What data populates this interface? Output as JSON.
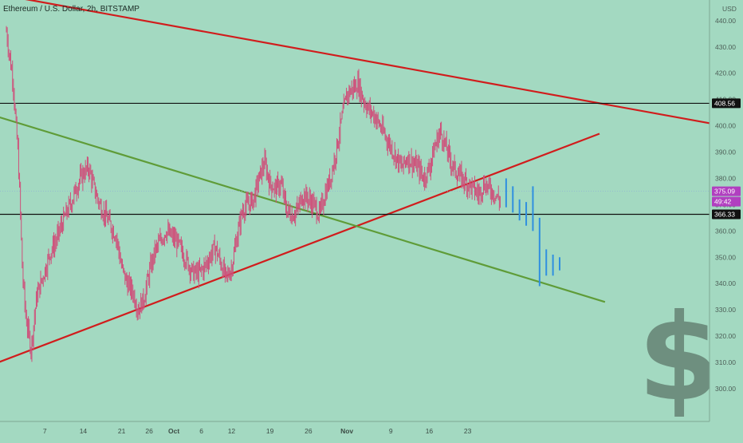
{
  "header": {
    "title": "Ethereum / U.S. Dollar, 2h, BITSTAMP",
    "currency": "USD"
  },
  "chart_data": {
    "type": "candlestick",
    "symbol": "ETHUSD",
    "interval": "2h",
    "exchange": "BITSTAMP",
    "ylim": [
      293,
      443
    ],
    "y_ticks": [
      "300.00",
      "310.00",
      "320.00",
      "330.00",
      "340.00",
      "350.00",
      "360.00",
      "370.00",
      "380.00",
      "390.00",
      "400.00",
      "410.00",
      "420.00",
      "430.00",
      "440.00"
    ],
    "x_ticks": [
      "7",
      "14",
      "21",
      "26",
      "Oct",
      "6",
      "12",
      "19",
      "26",
      "Nov",
      "9",
      "16",
      "23"
    ],
    "price_series": [
      [
        0,
        436
      ],
      [
        0.6,
        426
      ],
      [
        1.2,
        418
      ],
      [
        1.6,
        404
      ],
      [
        2.1,
        390
      ],
      [
        2.5,
        370
      ],
      [
        2.9,
        345
      ],
      [
        3.5,
        328
      ],
      [
        4.5,
        315
      ],
      [
        5.5,
        335
      ],
      [
        7,
        345
      ],
      [
        8,
        352
      ],
      [
        9,
        356
      ],
      [
        10,
        362
      ],
      [
        11,
        367
      ],
      [
        12,
        372
      ],
      [
        13,
        378
      ],
      [
        14,
        382
      ],
      [
        15,
        384
      ],
      [
        16,
        376
      ],
      [
        17,
        370
      ],
      [
        18,
        366
      ],
      [
        19,
        362
      ],
      [
        20,
        358
      ],
      [
        21,
        346
      ],
      [
        22,
        340
      ],
      [
        23,
        337
      ],
      [
        24,
        330
      ],
      [
        25,
        334
      ],
      [
        26,
        344
      ],
      [
        27,
        352
      ],
      [
        28,
        356
      ],
      [
        29,
        360
      ],
      [
        30,
        358
      ],
      [
        31,
        356
      ],
      [
        32,
        352
      ],
      [
        33,
        348
      ],
      [
        34,
        344
      ],
      [
        35,
        344
      ],
      [
        36,
        346
      ],
      [
        37,
        350
      ],
      [
        38,
        354
      ],
      [
        39,
        348
      ],
      [
        40,
        342
      ],
      [
        41,
        346
      ],
      [
        42,
        358
      ],
      [
        43,
        368
      ],
      [
        44,
        370
      ],
      [
        45,
        372
      ],
      [
        46,
        380
      ],
      [
        47,
        386
      ],
      [
        48,
        378
      ],
      [
        49,
        376
      ],
      [
        50,
        378
      ],
      [
        51,
        368
      ],
      [
        52,
        366
      ],
      [
        53,
        368
      ],
      [
        54,
        374
      ],
      [
        55,
        372
      ],
      [
        56,
        370
      ],
      [
        57,
        366
      ],
      [
        58,
        374
      ],
      [
        59,
        380
      ],
      [
        60,
        390
      ],
      [
        61,
        402
      ],
      [
        62,
        412
      ],
      [
        63,
        414
      ],
      [
        64,
        416
      ],
      [
        65,
        410
      ],
      [
        66,
        406
      ],
      [
        67,
        404
      ],
      [
        68,
        400
      ],
      [
        69,
        396
      ],
      [
        70,
        392
      ],
      [
        71,
        388
      ],
      [
        72,
        384
      ],
      [
        73,
        388
      ],
      [
        74,
        386
      ],
      [
        75,
        384
      ],
      [
        76,
        380
      ],
      [
        77,
        384
      ],
      [
        78,
        392
      ],
      [
        79,
        398
      ],
      [
        80,
        392
      ],
      [
        81,
        386
      ],
      [
        82,
        382
      ],
      [
        83,
        380
      ],
      [
        84,
        378
      ],
      [
        85,
        376
      ],
      [
        86,
        374
      ],
      [
        87,
        378
      ],
      [
        88,
        376
      ],
      [
        89,
        374
      ],
      [
        90,
        371
      ]
    ],
    "projection_bars": [
      {
        "x": 91,
        "low": 369,
        "high": 380
      },
      {
        "x": 92,
        "low": 367,
        "high": 377
      },
      {
        "x": 93,
        "low": 364,
        "high": 372
      },
      {
        "x": 94,
        "low": 362,
        "high": 371
      },
      {
        "x": 95,
        "low": 360,
        "high": 377
      },
      {
        "x": 96,
        "low": 339,
        "high": 365
      },
      {
        "x": 97,
        "low": 343,
        "high": 353
      },
      {
        "x": 98,
        "low": 343,
        "high": 351
      },
      {
        "x": 99,
        "low": 345,
        "high": 350
      }
    ],
    "horizontal_levels": [
      {
        "name": "resistance",
        "value": 408.56,
        "label": "408.56"
      },
      {
        "name": "support",
        "value": 366.33,
        "label": "366.33"
      }
    ],
    "current_price": {
      "value": 375.09,
      "label": "375.09",
      "countdown": "49:42"
    },
    "trendlines": [
      {
        "name": "upper-resistance",
        "color": "#d11c1c",
        "points": [
          [
            -4,
            451
          ],
          [
            128,
            401
          ]
        ]
      },
      {
        "name": "rising-support",
        "color": "#d11c1c",
        "points": [
          [
            -4,
            308
          ],
          [
            108,
            397
          ]
        ]
      },
      {
        "name": "falling-trend",
        "color": "#5f9c38",
        "points": [
          [
            -4,
            405
          ],
          [
            109,
            333
          ]
        ]
      }
    ],
    "watermark": "$",
    "colors": {
      "background": "#a3d9c1",
      "candle": "#cf4f7a",
      "projection": "#2f8fe0",
      "level_line": "#111111",
      "tag_current": "#b13fc0",
      "tag_level": "#111111",
      "watermark": "#6e8f7f"
    }
  }
}
